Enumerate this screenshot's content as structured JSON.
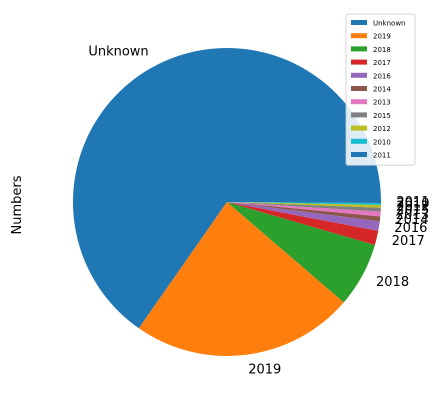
{
  "chart_data": {
    "type": "pie",
    "ylabel": "Numbers",
    "legend_position": "top-right",
    "slices": [
      {
        "label": "Unknown",
        "value": 65.3,
        "color": "#1f77b4"
      },
      {
        "label": "2019",
        "value": 23.4,
        "color": "#ff7f0e"
      },
      {
        "label": "2018",
        "value": 6.8,
        "color": "#2ca02c"
      },
      {
        "label": "2017",
        "value": 1.5,
        "color": "#d62728"
      },
      {
        "label": "2016",
        "value": 1.0,
        "color": "#9467bd"
      },
      {
        "label": "2014",
        "value": 0.5,
        "color": "#8c564b"
      },
      {
        "label": "2013",
        "value": 0.5,
        "color": "#e377c2"
      },
      {
        "label": "2015",
        "value": 0.4,
        "color": "#7f7f7f"
      },
      {
        "label": "2012",
        "value": 0.3,
        "color": "#bcbd22"
      },
      {
        "label": "2010",
        "value": 0.2,
        "color": "#17becf"
      },
      {
        "label": "2011",
        "value": 0.1,
        "color": "#1f77b4"
      }
    ]
  }
}
